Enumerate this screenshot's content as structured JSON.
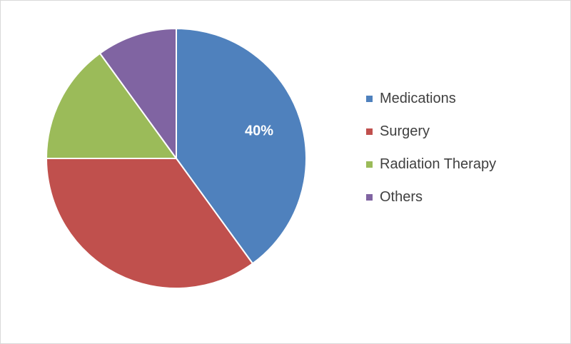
{
  "chart_data": {
    "type": "pie",
    "title": "",
    "categories": [
      "Medications",
      "Surgery",
      "Radiation Therapy",
      "Others"
    ],
    "values": [
      40,
      35,
      15,
      10
    ],
    "unit": "%",
    "data_labels": [
      "40%",
      "",
      "",
      ""
    ],
    "colors": [
      "#4f81bd",
      "#c0504d",
      "#9bbb59",
      "#8064a2"
    ],
    "start_angle_deg": 0,
    "direction": "clockwise",
    "legend_position": "right"
  }
}
